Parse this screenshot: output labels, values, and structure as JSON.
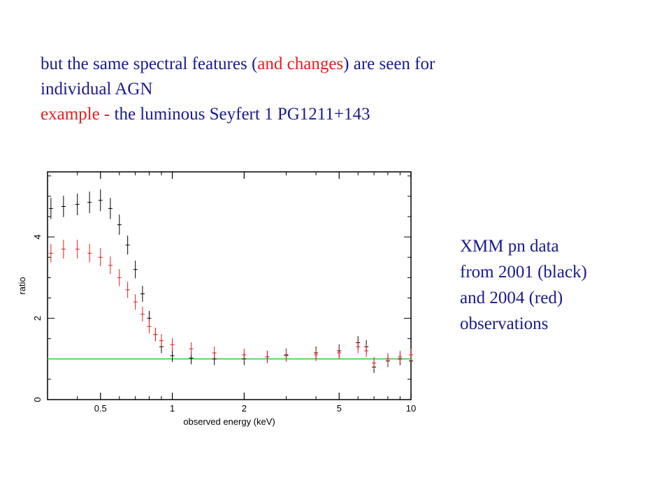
{
  "heading": {
    "line1_a": "but the same spectral features (",
    "line1_b": "and changes",
    "line1_c": ") are seen for",
    "line2": "individual AGN",
    "line3_a": "example - ",
    "line3_b": "the luminous Seyfert 1 PG1211+143"
  },
  "side_note": {
    "line1": "XMM pn data",
    "line2": "from 2001 (black)",
    "line3": "and 2004 (red)",
    "line4": "observations"
  },
  "colors": {
    "text": "#1a1a8c",
    "highlight": "#e02020",
    "series_2001": "#000000",
    "series_2004": "#e02020",
    "reference_line": "#33cc33"
  },
  "chart_data": {
    "type": "scatter",
    "xlabel": "observed energy (keV)",
    "ylabel": "ratio",
    "x_scale": "log",
    "xlim": [
      0.3,
      10
    ],
    "ylim": [
      0,
      5.6
    ],
    "x_ticks": [
      0.5,
      1,
      2,
      5,
      10
    ],
    "x_tick_labels": [
      "0.5",
      "1",
      "2",
      "5",
      "10"
    ],
    "y_ticks": [
      0,
      2,
      4
    ],
    "y_tick_labels": [
      "0",
      "2",
      "4"
    ],
    "reference_y": 1,
    "series": [
      {
        "color": "#000000",
        "x": [
          0.31,
          0.35,
          0.4,
          0.45,
          0.5,
          0.55,
          0.6,
          0.65,
          0.7,
          0.75,
          0.8,
          0.85,
          0.9,
          1.0,
          1.2,
          1.5,
          2.0,
          2.5,
          3.0,
          4.0,
          5.0,
          6.0,
          6.5,
          7.0,
          8.0,
          9.0,
          10.0
        ],
        "y": [
          4.7,
          4.75,
          4.8,
          4.85,
          4.9,
          4.7,
          4.3,
          3.8,
          3.2,
          2.6,
          2.0,
          1.6,
          1.3,
          1.08,
          1.02,
          1.0,
          1.0,
          1.05,
          1.1,
          1.15,
          1.2,
          1.4,
          1.3,
          0.8,
          0.95,
          1.0,
          0.95
        ]
      },
      {
        "color": "#e02020",
        "x": [
          0.31,
          0.35,
          0.4,
          0.45,
          0.5,
          0.55,
          0.6,
          0.65,
          0.7,
          0.75,
          0.8,
          0.85,
          0.9,
          1.0,
          1.2,
          1.5,
          2.0,
          2.5,
          3.0,
          4.0,
          5.0,
          6.0,
          6.5,
          7.0,
          8.0,
          9.0,
          10.0
        ],
        "y": [
          3.6,
          3.7,
          3.7,
          3.6,
          3.5,
          3.3,
          3.0,
          2.7,
          2.4,
          2.1,
          1.8,
          1.6,
          1.45,
          1.35,
          1.25,
          1.15,
          1.1,
          1.05,
          1.08,
          1.1,
          1.15,
          1.3,
          1.2,
          0.9,
          1.0,
          1.05,
          1.1
        ]
      }
    ]
  }
}
